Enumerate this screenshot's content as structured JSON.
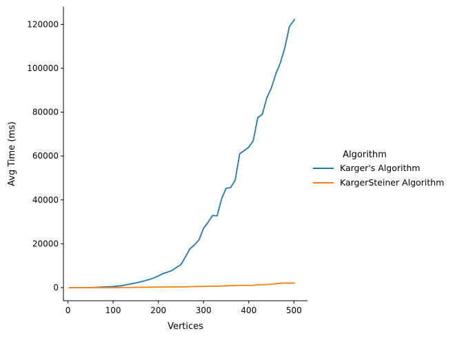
{
  "chart_data": {
    "type": "line",
    "title": "",
    "xlabel": "Vertices",
    "ylabel": "Avg Time (ms)",
    "xlim": [
      -10,
      530
    ],
    "ylim": [
      -6000,
      128000
    ],
    "xticks": [
      0,
      100,
      200,
      300,
      400,
      500
    ],
    "yticks": [
      0,
      20000,
      40000,
      60000,
      80000,
      100000,
      120000
    ],
    "grid": false,
    "legend": {
      "title": "Algorithm",
      "placement": "right-outside"
    },
    "series": [
      {
        "name": "Karger's Algorithm",
        "color": "#1f77b4",
        "points": [
          [
            2,
            0
          ],
          [
            10,
            0
          ],
          [
            20,
            0
          ],
          [
            30,
            0
          ],
          [
            40,
            0
          ],
          [
            50,
            0
          ],
          [
            60,
            100
          ],
          [
            70,
            200
          ],
          [
            80,
            300
          ],
          [
            90,
            400
          ],
          [
            100,
            500
          ],
          [
            110,
            700
          ],
          [
            120,
            900
          ],
          [
            130,
            1300
          ],
          [
            140,
            1700
          ],
          [
            150,
            2100
          ],
          [
            160,
            2600
          ],
          [
            170,
            3100
          ],
          [
            180,
            3700
          ],
          [
            190,
            4400
          ],
          [
            200,
            5300
          ],
          [
            210,
            6400
          ],
          [
            220,
            7000
          ],
          [
            230,
            7800
          ],
          [
            240,
            9200
          ],
          [
            250,
            10500
          ],
          [
            260,
            14000
          ],
          [
            270,
            17700
          ],
          [
            280,
            19500
          ],
          [
            290,
            21800
          ],
          [
            300,
            27000
          ],
          [
            310,
            29800
          ],
          [
            320,
            32900
          ],
          [
            330,
            32700
          ],
          [
            340,
            40500
          ],
          [
            350,
            45300
          ],
          [
            360,
            45600
          ],
          [
            370,
            49000
          ],
          [
            380,
            61000
          ],
          [
            390,
            62500
          ],
          [
            400,
            64000
          ],
          [
            410,
            67000
          ],
          [
            420,
            77500
          ],
          [
            430,
            79000
          ],
          [
            440,
            86500
          ],
          [
            450,
            91000
          ],
          [
            460,
            97500
          ],
          [
            470,
            102500
          ],
          [
            480,
            109500
          ],
          [
            490,
            119000
          ],
          [
            502,
            122500
          ]
        ]
      },
      {
        "name": "KargerSteiner Algorithm",
        "color": "#ff7f0e",
        "points": [
          [
            2,
            0
          ],
          [
            20,
            0
          ],
          [
            40,
            0
          ],
          [
            60,
            0
          ],
          [
            80,
            0
          ],
          [
            100,
            0
          ],
          [
            120,
            50
          ],
          [
            140,
            100
          ],
          [
            160,
            150
          ],
          [
            180,
            200
          ],
          [
            200,
            250
          ],
          [
            220,
            300
          ],
          [
            240,
            320
          ],
          [
            260,
            350
          ],
          [
            280,
            480
          ],
          [
            300,
            550
          ],
          [
            320,
            600
          ],
          [
            340,
            700
          ],
          [
            360,
            900
          ],
          [
            380,
            1000
          ],
          [
            400,
            1000
          ],
          [
            410,
            1000
          ],
          [
            420,
            1300
          ],
          [
            440,
            1400
          ],
          [
            460,
            1700
          ],
          [
            470,
            2000
          ],
          [
            480,
            2100
          ],
          [
            490,
            2000
          ],
          [
            502,
            2100
          ]
        ]
      }
    ]
  }
}
